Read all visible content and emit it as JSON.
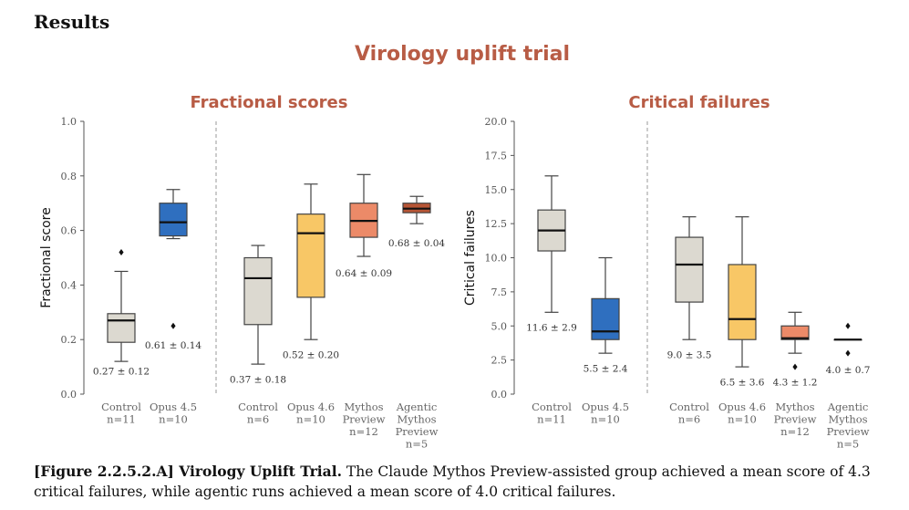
{
  "section_heading": "Results",
  "figure_title": "Virology uplift trial",
  "caption": {
    "label": "[Figure 2.2.5.2.A] Virology Uplift Trial.",
    "text": " The Claude Mythos Preview-assisted group achieved a mean score of 4.3 critical failures, while agentic runs achieved a mean score of 4.0 critical failures."
  },
  "colors": {
    "title": "#b85c45",
    "control": "#dcd9d0",
    "opus45": "#2f6fbf",
    "opus46": "#f8c766",
    "mythos": "#ec8a68",
    "agentic": "#b75535"
  },
  "chart_data": [
    {
      "type": "box",
      "title": "Fractional scores",
      "ylabel": "Fractional score",
      "ylim": [
        0,
        1.0
      ],
      "yticks": [
        "0.0",
        "0.2",
        "0.4",
        "0.6",
        "0.8",
        "1.0"
      ],
      "ytick_values": [
        0,
        0.2,
        0.4,
        0.6,
        0.8,
        1.0
      ],
      "divider_after": 1,
      "groups": [
        {
          "label": [
            "Control",
            "n=11"
          ],
          "color": "control",
          "q1": 0.19,
          "median": 0.27,
          "q3": 0.295,
          "whislo": 0.12,
          "whishi": 0.45,
          "fliers": [
            0.52
          ],
          "annotation": "0.27 ± 0.12",
          "ann_at": 0.085
        },
        {
          "label": [
            "Opus 4.5",
            "n=10"
          ],
          "color": "opus45",
          "q1": 0.58,
          "median": 0.63,
          "q3": 0.7,
          "whislo": 0.57,
          "whishi": 0.75,
          "fliers": [
            0.25
          ],
          "annotation": "0.61 ± 0.14",
          "ann_at": 0.18
        },
        {
          "label": [
            "Control",
            "n=6"
          ],
          "color": "control",
          "q1": 0.255,
          "median": 0.425,
          "q3": 0.5,
          "whislo": 0.11,
          "whishi": 0.545,
          "fliers": [],
          "annotation": "0.37 ± 0.18",
          "ann_at": 0.055
        },
        {
          "label": [
            "Opus 4.6",
            "n=10"
          ],
          "color": "opus46",
          "q1": 0.355,
          "median": 0.59,
          "q3": 0.66,
          "whislo": 0.2,
          "whishi": 0.77,
          "fliers": [],
          "annotation": "0.52 ± 0.20",
          "ann_at": 0.145
        },
        {
          "label": [
            "Mythos",
            "Preview",
            "n=12"
          ],
          "color": "mythos",
          "q1": 0.575,
          "median": 0.635,
          "q3": 0.7,
          "whislo": 0.505,
          "whishi": 0.805,
          "fliers": [],
          "annotation": "0.64 ± 0.09",
          "ann_at": 0.445
        },
        {
          "label": [
            "Agentic",
            "Mythos",
            "Preview",
            "n=5"
          ],
          "color": "agentic",
          "q1": 0.665,
          "median": 0.68,
          "q3": 0.7,
          "whislo": 0.625,
          "whishi": 0.725,
          "fliers": [],
          "annotation": "0.68 ± 0.04",
          "ann_at": 0.555
        }
      ]
    },
    {
      "type": "box",
      "title": "Critical failures",
      "ylabel": "Critical failures",
      "ylim": [
        0,
        20.0
      ],
      "yticks": [
        "0.0",
        "2.5",
        "5.0",
        "7.5",
        "10.0",
        "12.5",
        "15.0",
        "17.5",
        "20.0"
      ],
      "ytick_values": [
        0,
        2.5,
        5.0,
        7.5,
        10.0,
        12.5,
        15.0,
        17.5,
        20.0
      ],
      "divider_after": 1,
      "groups": [
        {
          "label": [
            "Control",
            "n=11"
          ],
          "color": "control",
          "q1": 10.5,
          "median": 12.0,
          "q3": 13.5,
          "whislo": 6.0,
          "whishi": 16.0,
          "fliers": [],
          "annotation": "11.6 ± 2.9",
          "ann_at": 4.9
        },
        {
          "label": [
            "Opus 4.5",
            "n=10"
          ],
          "color": "opus45",
          "q1": 4.0,
          "median": 4.6,
          "q3": 7.0,
          "whislo": 3.0,
          "whishi": 10.0,
          "fliers": [],
          "annotation": "5.5 ± 2.4",
          "ann_at": 1.9
        },
        {
          "label": [
            "Control",
            "n=6"
          ],
          "color": "control",
          "q1": 6.75,
          "median": 9.5,
          "q3": 11.5,
          "whislo": 4.0,
          "whishi": 13.0,
          "fliers": [],
          "annotation": "9.0 ± 3.5",
          "ann_at": 2.9
        },
        {
          "label": [
            "Opus 4.6",
            "n=10"
          ],
          "color": "opus46",
          "q1": 4.0,
          "median": 5.5,
          "q3": 9.5,
          "whislo": 2.0,
          "whishi": 13.0,
          "fliers": [],
          "annotation": "6.5 ± 3.6",
          "ann_at": 0.9
        },
        {
          "label": [
            "Mythos",
            "Preview",
            "n=12"
          ],
          "color": "mythos",
          "q1": 4.0,
          "median": 4.1,
          "q3": 5.0,
          "whislo": 3.0,
          "whishi": 6.0,
          "fliers": [
            2.0
          ],
          "annotation": "4.3 ± 1.2",
          "ann_at": 0.9
        },
        {
          "label": [
            "Agentic",
            "Mythos",
            "Preview",
            "n=5"
          ],
          "color": "agentic",
          "q1": 4.0,
          "median": 4.0,
          "q3": 4.0,
          "whislo": 4.0,
          "whishi": 4.0,
          "fliers": [
            5.0,
            3.0
          ],
          "annotation": "4.0 ± 0.7",
          "ann_at": 1.8
        }
      ]
    }
  ]
}
